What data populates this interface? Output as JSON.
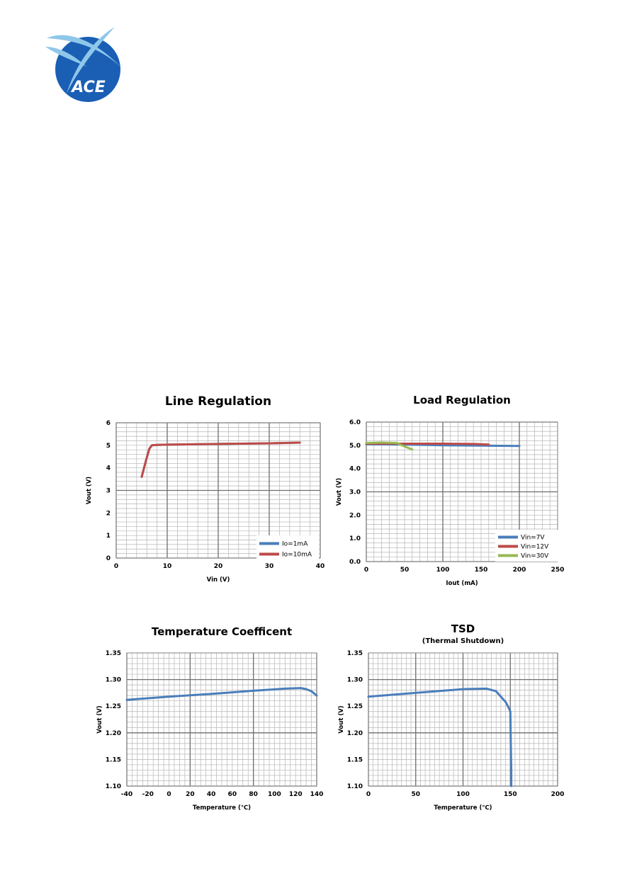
{
  "logo": {
    "text": "ACE",
    "colors": {
      "ring": "#1a5fb4",
      "swoosh": "#8ec7ea"
    }
  },
  "chart_data": [
    {
      "type": "line",
      "title": "Line Regulation",
      "subtitle": "",
      "xlabel": "Vin (V)",
      "ylabel": "Vout (V)",
      "xlim": [
        0,
        40
      ],
      "ylim": [
        0,
        6
      ],
      "xticks": [
        "0",
        "10",
        "20",
        "30",
        "40"
      ],
      "yticks": [
        "0",
        "1",
        "2",
        "3",
        "4",
        "5",
        "6"
      ],
      "grid": {
        "major_x": 10,
        "minor_x": 2,
        "major_y": 3,
        "minor_y": 0.2
      },
      "legend": "bottom-right",
      "series": [
        {
          "name": "Io=1mA",
          "color": "#4a7ebb",
          "x": [
            5,
            5.8,
            6.5,
            7,
            8,
            10,
            20,
            30,
            36
          ],
          "y": [
            3.6,
            4.3,
            4.85,
            5.0,
            5.02,
            5.03,
            5.06,
            5.09,
            5.12
          ]
        },
        {
          "name": "Io=10mA",
          "color": "#be4b48",
          "x": [
            5,
            5.8,
            6.5,
            7,
            8,
            10,
            20,
            30,
            36
          ],
          "y": [
            3.6,
            4.3,
            4.85,
            5.0,
            5.02,
            5.03,
            5.06,
            5.09,
            5.12
          ]
        }
      ]
    },
    {
      "type": "line",
      "title": "Load Regulation",
      "subtitle": "",
      "xlabel": "Iout (mA)",
      "ylabel": "Vout (V)",
      "xlim": [
        0,
        250
      ],
      "ylim": [
        0,
        6
      ],
      "xticks": [
        "0",
        "50",
        "100",
        "150",
        "200",
        "250"
      ],
      "yticks": [
        "0.0",
        "1.0",
        "2.0",
        "3.0",
        "4.0",
        "5.0",
        "6.0"
      ],
      "grid": {
        "major_x": 100,
        "minor_x": 10,
        "major_y": 3,
        "minor_y": 0.2
      },
      "legend": "bottom-right",
      "series": [
        {
          "name": "Vin=7V",
          "color": "#4a7ebb",
          "x": [
            0,
            50,
            100,
            150,
            200
          ],
          "y": [
            5.05,
            5.03,
            5.0,
            4.99,
            4.97
          ]
        },
        {
          "name": "Vin=12V",
          "color": "#be4b48",
          "x": [
            0,
            50,
            100,
            140,
            160
          ],
          "y": [
            5.07,
            5.07,
            5.07,
            5.06,
            5.03
          ]
        },
        {
          "name": "Vin=30V",
          "color": "#98b954",
          "x": [
            0,
            20,
            40,
            50,
            60
          ],
          "y": [
            5.1,
            5.12,
            5.1,
            4.95,
            4.82
          ]
        }
      ]
    },
    {
      "type": "line",
      "title": "Temperature Coefficent",
      "subtitle": "",
      "xlabel": "Temperature (℃)",
      "ylabel": "Vout (V)",
      "xlim": [
        -40,
        140
      ],
      "ylim": [
        1.1,
        1.35
      ],
      "xticks": [
        "-40",
        "-20",
        "0",
        "20",
        "40",
        "60",
        "80",
        "100",
        "120",
        "140"
      ],
      "yticks": [
        "1.10",
        "1.15",
        "1.20",
        "1.25",
        "1.30",
        "1.35"
      ],
      "grid": {
        "major_x": 60,
        "minor_x": 5,
        "major_y": 0.1,
        "minor_y": 0.01
      },
      "legend": "none",
      "series": [
        {
          "name": "",
          "color": "#4a7ebb",
          "x": [
            -40,
            0,
            40,
            80,
            110,
            125,
            130,
            135,
            140
          ],
          "y": [
            1.262,
            1.268,
            1.273,
            1.279,
            1.283,
            1.284,
            1.282,
            1.278,
            1.27
          ]
        }
      ]
    },
    {
      "type": "line",
      "title": "TSD",
      "subtitle": "(Thermal Shutdown)",
      "xlabel": "Temperature (℃)",
      "ylabel": "Vout (V)",
      "xlim": [
        0,
        200
      ],
      "ylim": [
        1.1,
        1.35
      ],
      "xticks": [
        "0",
        "50",
        "100",
        "150",
        "200"
      ],
      "yticks": [
        "1.10",
        "1.15",
        "1.20",
        "1.25",
        "1.30",
        "1.35"
      ],
      "grid": {
        "major_x": 50,
        "minor_x": 5,
        "major_y": 0.1,
        "minor_y": 0.01
      },
      "legend": "none",
      "series": [
        {
          "name": "",
          "color": "#4a7ebb",
          "x": [
            0,
            50,
            100,
            125,
            135,
            140,
            145,
            148,
            150,
            150.5,
            151,
            151
          ],
          "y": [
            1.268,
            1.275,
            1.282,
            1.283,
            1.278,
            1.268,
            1.258,
            1.248,
            1.24,
            1.18,
            1.13,
            1.1
          ]
        }
      ]
    }
  ]
}
